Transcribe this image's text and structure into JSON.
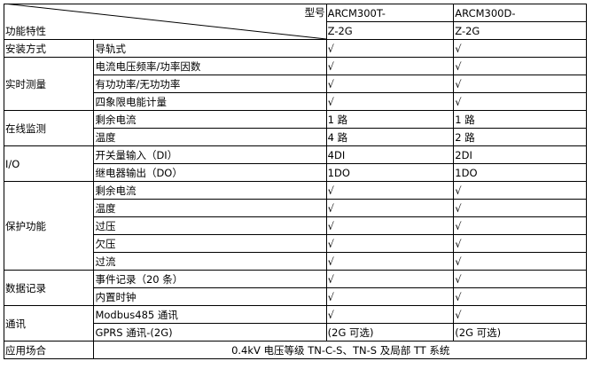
{
  "header": {
    "model_label": "型号",
    "feature_label": "功能特性",
    "models": [
      {
        "line1": "ARCM300T-",
        "line2": "Z-2G"
      },
      {
        "line1": "ARCM300D-",
        "line2": "Z-2G"
      }
    ]
  },
  "groups": [
    {
      "name": "安装方式",
      "rows": [
        {
          "item": "导轨式",
          "a": "√",
          "b": "√"
        }
      ]
    },
    {
      "name": "实时测量",
      "rows": [
        {
          "item": "电流电压频率/功率因数",
          "a": "√",
          "b": "√"
        },
        {
          "item": "有功功率/无功功率",
          "a": "√",
          "b": "√"
        },
        {
          "item": "四象限电能计量",
          "a": "√",
          "b": "√"
        }
      ]
    },
    {
      "name": "在线监测",
      "rows": [
        {
          "item": "剩余电流",
          "a": "1 路",
          "b": "1 路"
        },
        {
          "item": "温度",
          "a": "4 路",
          "b": "2 路"
        }
      ]
    },
    {
      "name": "I/O",
      "rows": [
        {
          "item": "开关量输入（DI）",
          "a": "4DI",
          "b": "2DI"
        },
        {
          "item": "继电器输出（DO）",
          "a": "1DO",
          "b": "1DO"
        }
      ]
    },
    {
      "name": "保护功能",
      "rows": [
        {
          "item": "剩余电流",
          "a": "√",
          "b": "√"
        },
        {
          "item": "温度",
          "a": "√",
          "b": "√"
        },
        {
          "item": "过压",
          "a": "√",
          "b": "√"
        },
        {
          "item": "欠压",
          "a": "√",
          "b": "√"
        },
        {
          "item": "过流",
          "a": "√",
          "b": "√"
        }
      ]
    },
    {
      "name": "数据记录",
      "rows": [
        {
          "item": "事件记录（20 条）",
          "a": "√",
          "b": "√"
        },
        {
          "item": "内置时钟",
          "a": "√",
          "b": "√"
        }
      ]
    },
    {
      "name": "通讯",
      "rows": [
        {
          "item": "Modbus485 通讯",
          "a": "√",
          "b": "√"
        },
        {
          "item": "GPRS 通讯-(2G)",
          "a": "(2G 可选)",
          "b": "(2G 可选)"
        }
      ]
    }
  ],
  "application": {
    "label": "应用场合",
    "value": "0.4kV 电压等级 TN-C-S、TN-S 及局部 TT 系统"
  }
}
